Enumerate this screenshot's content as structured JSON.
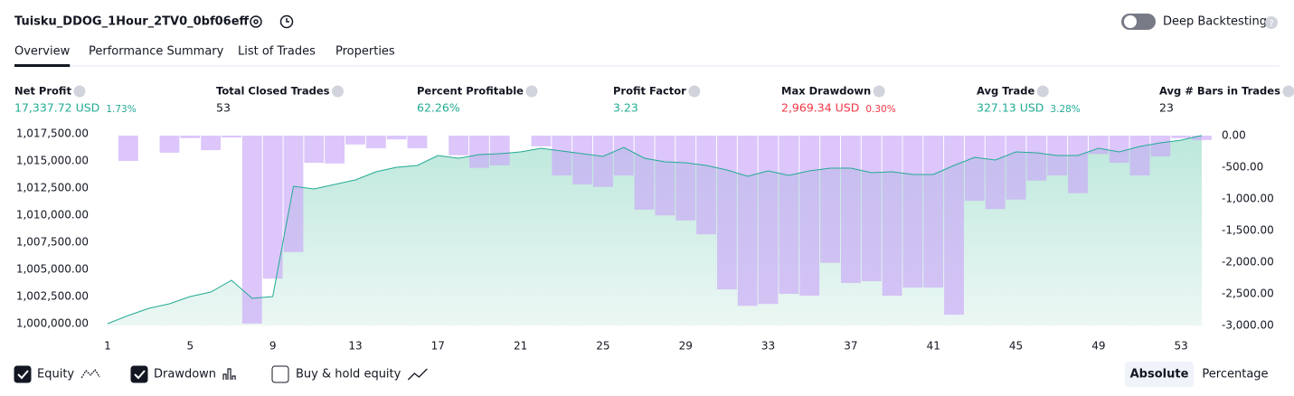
{
  "header": {
    "title": "Tuisku_DDOG_1Hour_2TV0_0bf06eff",
    "deep_backtesting": "Deep Backtesting"
  },
  "tabs": [
    "Overview",
    "Performance Summary",
    "List of Trades",
    "Properties"
  ],
  "active_tab": 0,
  "metrics": [
    {
      "label": "Net Profit",
      "value": "17,337.72 USD",
      "percent": "1.73%",
      "tone": "positive"
    },
    {
      "label": "Total Closed Trades",
      "value": "53",
      "tone": "neutral"
    },
    {
      "label": "Percent Profitable",
      "value": "62.26%",
      "tone": "positive"
    },
    {
      "label": "Profit Factor",
      "value": "3.23",
      "tone": "positive"
    },
    {
      "label": "Max Drawdown",
      "value": "2,969.34 USD",
      "percent": "0.30%",
      "tone": "negative"
    },
    {
      "label": "Avg Trade",
      "value": "327.13 USD",
      "percent": "3.28%",
      "tone": "positive"
    },
    {
      "label": "Avg # Bars in Trades",
      "value": "23",
      "tone": "neutral"
    }
  ],
  "chart_data": {
    "type": "combo",
    "x": [
      1,
      2,
      3,
      4,
      5,
      6,
      7,
      8,
      9,
      10,
      11,
      12,
      13,
      14,
      15,
      16,
      17,
      18,
      19,
      20,
      21,
      22,
      23,
      24,
      25,
      26,
      27,
      28,
      29,
      30,
      31,
      32,
      33,
      34,
      35,
      36,
      37,
      38,
      39,
      40,
      41,
      42,
      43,
      44,
      45,
      46,
      47,
      48,
      49,
      50,
      51,
      52,
      53,
      54
    ],
    "series": [
      {
        "name": "Equity",
        "color": "#22ab94",
        "checked": true,
        "values": [
          1000000,
          1000750,
          1001417,
          1001833,
          1002500,
          1002917,
          1004000,
          1002333,
          1002500,
          1012667,
          1012417,
          1012833,
          1013250,
          1014000,
          1014417,
          1014583,
          1015500,
          1015250,
          1015583,
          1015667,
          1015833,
          1016167,
          1015917,
          1015667,
          1015417,
          1016250,
          1015250,
          1014917,
          1014833,
          1014583,
          1014167,
          1013583,
          1014083,
          1013667,
          1014083,
          1014333,
          1014333,
          1013917,
          1014000,
          1013750,
          1013750,
          1014583,
          1015333,
          1015083,
          1015833,
          1015750,
          1015500,
          1015500,
          1016167,
          1015833,
          1016333,
          1016667,
          1016917,
          1017338
        ]
      },
      {
        "name": "Drawdown",
        "color": "#c9a7f7",
        "checked": true,
        "axis": "y2",
        "values": [
          0,
          -400,
          0,
          -270,
          -40,
          -230,
          -30,
          -2970,
          -2260,
          -1840,
          -430,
          -440,
          -140,
          -200,
          -60,
          -200,
          0,
          -310,
          -510,
          -470,
          0,
          -170,
          -630,
          -770,
          -810,
          -630,
          -1170,
          -1260,
          -1340,
          -1560,
          -2430,
          -2690,
          -2660,
          -2500,
          -2530,
          -2010,
          -2330,
          -2300,
          -2530,
          -2400,
          -2400,
          -2830,
          -1030,
          -1160,
          -1010,
          -710,
          -630,
          -910,
          -290,
          -430,
          -630,
          -330,
          -40,
          -70
        ]
      }
    ],
    "benchmark": {
      "name": "Buy & hold equity",
      "checked": false
    },
    "xlim": [
      1,
      54
    ],
    "xticks": [
      1,
      5,
      9,
      13,
      17,
      21,
      25,
      29,
      33,
      37,
      41,
      45,
      49,
      53
    ],
    "ylim": [
      1000000,
      1017500
    ],
    "yticks": [
      {
        "value": 1000000,
        "label": "1,000,000.00"
      },
      {
        "value": 1002500,
        "label": "1,002,500.00"
      },
      {
        "value": 1005000,
        "label": "1,005,000.00"
      },
      {
        "value": 1007500,
        "label": "1,007,500.00"
      },
      {
        "value": 1010000,
        "label": "1,010,000.00"
      },
      {
        "value": 1012500,
        "label": "1,012,500.00"
      },
      {
        "value": 1015000,
        "label": "1,015,000.00"
      },
      {
        "value": 1017500,
        "label": "1,017,500.00"
      }
    ],
    "y2lim": [
      -3000,
      0
    ],
    "y2ticks": [
      {
        "value": 0,
        "label": "0.00"
      },
      {
        "value": -500,
        "label": "-500.00"
      },
      {
        "value": -1000,
        "label": "-1,000.00"
      },
      {
        "value": -1500,
        "label": "-1,500.00"
      },
      {
        "value": -2000,
        "label": "-2,000.00"
      },
      {
        "value": -2500,
        "label": "-2,500.00"
      },
      {
        "value": -3000,
        "label": "-3,000.00"
      }
    ]
  },
  "scale_modes": [
    "Absolute",
    "Percentage"
  ],
  "active_scale_mode": 0
}
